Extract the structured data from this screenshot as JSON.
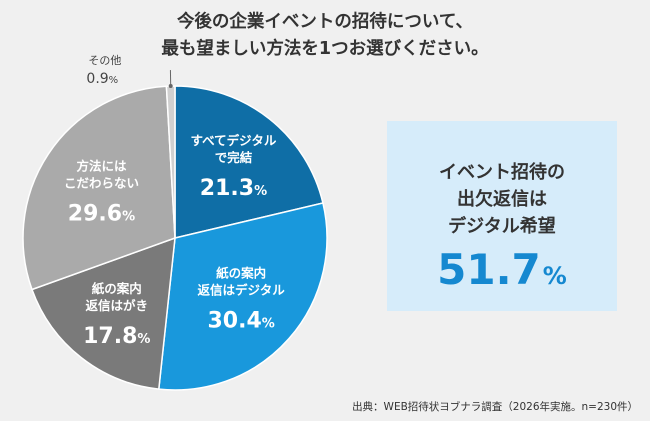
{
  "title": {
    "line1": "今後の企業イベントの招待について、",
    "line2": "最も望ましい方法を1つお選びください。"
  },
  "chart_data": {
    "type": "pie",
    "unit": "%",
    "slices": [
      {
        "label_lines": [
          "すべてデジタル",
          "で完結"
        ],
        "value": 21.3,
        "color": "#0f6ea6",
        "label_color": "#ffffff"
      },
      {
        "label_lines": [
          "紙の案内",
          "返信はデジタル"
        ],
        "value": 30.4,
        "color": "#1998dc",
        "label_color": "#ffffff"
      },
      {
        "label_lines": [
          "紙の案内",
          "返信はがき"
        ],
        "value": 17.8,
        "color": "#7a7a7a",
        "label_color": "#ffffff"
      },
      {
        "label_lines": [
          "方法には",
          "こだわらない"
        ],
        "value": 29.6,
        "color": "#aaaaaa",
        "label_color": "#ffffff"
      },
      {
        "label_lines": [
          "その他"
        ],
        "value": 0.9,
        "color": "#d0d0d0",
        "label_color": "#444444"
      }
    ]
  },
  "callout": {
    "lines": [
      "イベント招待の",
      "出欠返信は",
      "デジタル希望"
    ],
    "value": "51.7",
    "unit": "%"
  },
  "source": "出典：WEB招待状ヨブナラ調査（2026年実施。n=230件）"
}
